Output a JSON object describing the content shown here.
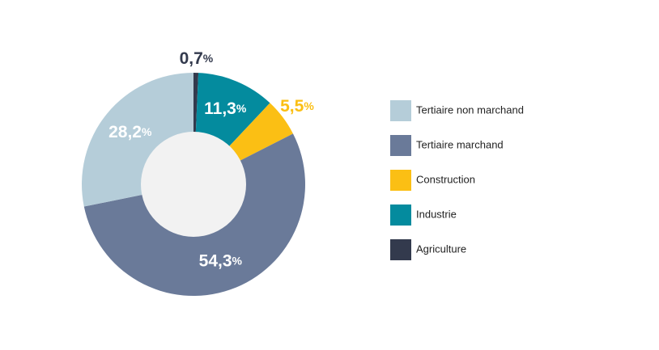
{
  "chart_data": {
    "type": "donut",
    "categories": [
      "Tertiaire non marchand",
      "Tertiaire marchand",
      "Construction",
      "Industrie",
      "Agriculture"
    ],
    "values": [
      28.2,
      54.3,
      5.5,
      11.3,
      0.7
    ],
    "value_labels": [
      "28,2%",
      "54,3%",
      "5,5%",
      "11,3%",
      "0,7%"
    ],
    "colors": [
      "#b5cdd9",
      "#6a7a99",
      "#fbbf14",
      "#048b9e",
      "#333a4d"
    ]
  }
}
